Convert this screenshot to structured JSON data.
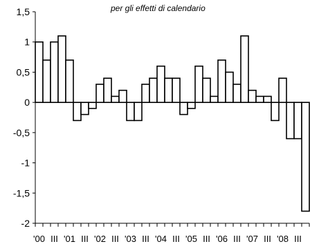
{
  "chart_data": {
    "type": "bar",
    "title": "per gli effetti di calendario",
    "xlabel": "",
    "ylabel": "",
    "ylim": [
      -2,
      1.5
    ],
    "yticks": [
      "1,5",
      "1",
      "0,5",
      "0",
      "-0,5",
      "-1",
      "-1,5",
      "-2"
    ],
    "xtick_labels": [
      "'00",
      "III",
      "'01",
      "III",
      "'02",
      "III",
      "'03",
      "III",
      "'04",
      "III",
      "'05",
      "III",
      "'06",
      "III",
      "'07",
      "III",
      "'08",
      "III"
    ],
    "categories": [
      "2000 Q1",
      "2000 Q2",
      "2000 Q3",
      "2000 Q4",
      "2001 Q1",
      "2001 Q2",
      "2001 Q3",
      "2001 Q4",
      "2002 Q1",
      "2002 Q2",
      "2002 Q3",
      "2002 Q4",
      "2003 Q1",
      "2003 Q2",
      "2003 Q3",
      "2003 Q4",
      "2004 Q1",
      "2004 Q2",
      "2004 Q3",
      "2004 Q4",
      "2005 Q1",
      "2005 Q2",
      "2005 Q3",
      "2005 Q4",
      "2006 Q1",
      "2006 Q2",
      "2006 Q3",
      "2006 Q4",
      "2007 Q1",
      "2007 Q2",
      "2007 Q3",
      "2007 Q4",
      "2008 Q1",
      "2008 Q2",
      "2008 Q3",
      "2008 Q4"
    ],
    "values": [
      1.0,
      0.7,
      1.0,
      1.1,
      0.7,
      -0.3,
      -0.2,
      -0.1,
      0.3,
      0.4,
      0.1,
      0.2,
      -0.3,
      -0.3,
      0.3,
      0.4,
      0.6,
      0.4,
      0.4,
      -0.2,
      -0.1,
      0.6,
      0.4,
      0.1,
      0.7,
      0.5,
      0.3,
      1.1,
      0.2,
      0.1,
      0.1,
      -0.3,
      0.4,
      -0.6,
      -0.6,
      -1.8
    ],
    "bar_fill": "#ffffff",
    "bar_stroke": "#000000",
    "grid": false
  }
}
